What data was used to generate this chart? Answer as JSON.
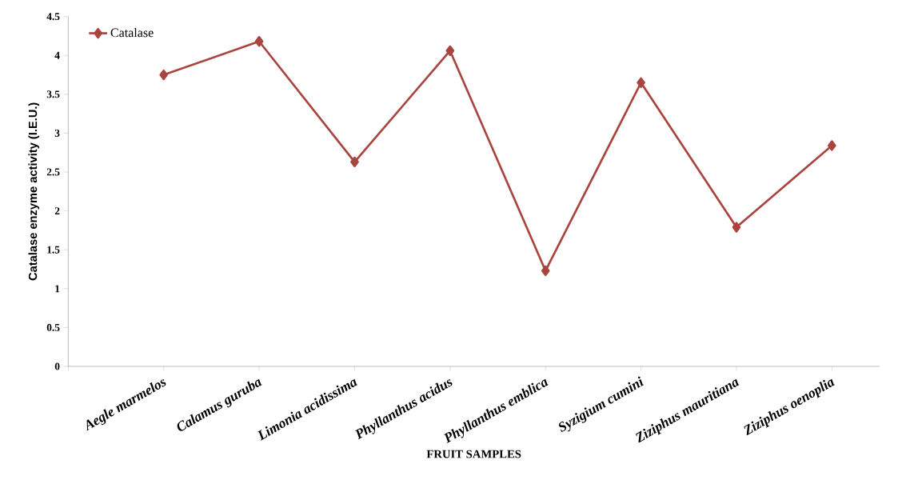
{
  "chart_data": {
    "type": "line",
    "xlabel": "FRUIT SAMPLES",
    "ylabel": "Catalase enzyme activity (I.E.U.)",
    "categories": [
      null,
      "Aegle marmelos",
      "Calamus guruba",
      "Limonia acidissima",
      "Phyllanthus acidus",
      "Phyllanthus emblica",
      "Syzigium cumini",
      "Ziziphus mauritiana",
      "Ziziphus oenoplia"
    ],
    "series": [
      {
        "name": "Catalase",
        "color": "#a9443f",
        "values": [
          null,
          3.75,
          4.18,
          2.63,
          4.06,
          1.23,
          3.65,
          1.79,
          2.84
        ]
      }
    ],
    "ylim": [
      0,
      4.5
    ],
    "yticks": [
      0,
      0.5,
      1,
      1.5,
      2,
      2.5,
      3,
      3.5,
      4,
      4.5
    ],
    "marker": "diamond",
    "legend": "top left"
  }
}
